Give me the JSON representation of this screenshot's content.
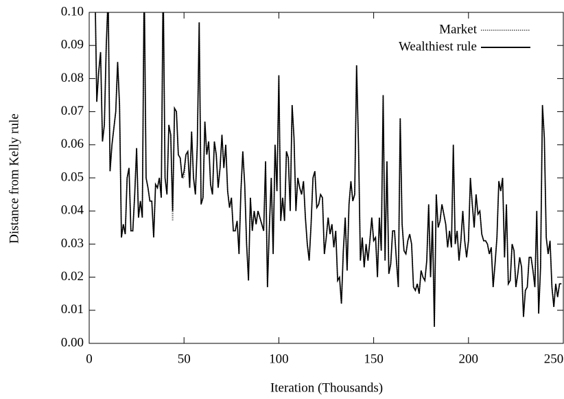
{
  "chart_data": {
    "type": "line",
    "xlabel": "Iteration (Thousands)",
    "ylabel": "Distance from Kelly rule",
    "xlim": [
      0,
      250
    ],
    "xticks": [
      0,
      50,
      100,
      150,
      200,
      250
    ],
    "ylim": [
      0,
      0.1
    ],
    "yticks": [
      {
        "value": 0,
        "label": "0.00"
      },
      0.01,
      0.02,
      0.03,
      0.04,
      0.05,
      0.06,
      0.07,
      0.08,
      0.09,
      {
        "value": 0.1,
        "label": "0.10"
      }
    ],
    "legend": "top-right",
    "x": [
      3,
      4,
      5,
      6,
      7,
      8,
      9,
      10,
      11,
      12,
      13,
      14,
      15,
      16,
      17,
      18,
      19,
      20,
      21,
      22,
      23,
      24,
      25,
      26,
      27,
      28,
      29,
      30,
      31,
      32,
      33,
      34,
      35,
      36,
      37,
      38,
      39,
      40,
      41,
      42,
      43,
      44,
      45,
      46,
      47,
      48,
      49,
      50,
      51,
      52,
      53,
      54,
      55,
      56,
      57,
      58,
      59,
      60,
      61,
      62,
      63,
      64,
      65,
      66,
      67,
      68,
      69,
      70,
      71,
      72,
      73,
      74,
      75,
      76,
      77,
      78,
      79,
      80,
      81,
      82,
      83,
      84,
      85,
      86,
      87,
      88,
      89,
      90,
      91,
      92,
      93,
      94,
      95,
      96,
      97,
      98,
      99,
      100,
      101,
      102,
      103,
      104,
      105,
      106,
      107,
      108,
      109,
      110,
      111,
      112,
      113,
      114,
      115,
      116,
      117,
      118,
      119,
      120,
      121,
      122,
      123,
      124,
      125,
      126,
      127,
      128,
      129,
      130,
      131,
      132,
      133,
      134,
      135,
      136,
      137,
      138,
      139,
      140,
      141,
      142,
      143,
      144,
      145,
      146,
      147,
      148,
      149,
      150,
      151,
      152,
      153,
      154,
      155,
      156,
      157,
      158,
      159,
      160,
      161,
      162,
      163,
      164,
      165,
      166,
      167,
      168,
      169,
      170,
      171,
      172,
      173,
      174,
      175,
      176,
      177,
      178,
      179,
      180,
      181,
      182,
      183,
      184,
      185,
      186,
      187,
      188,
      189,
      190,
      191,
      192,
      193,
      194,
      195,
      196,
      197,
      198,
      199,
      200,
      201,
      202,
      203,
      204,
      205,
      206,
      207,
      208,
      209,
      210,
      211,
      212,
      213,
      214,
      215,
      216,
      217,
      218,
      219,
      220,
      221,
      222,
      223,
      224,
      225,
      226,
      227,
      228,
      229,
      230,
      231,
      232,
      233,
      234,
      235,
      236,
      237,
      238,
      239,
      240,
      241,
      242,
      243,
      244,
      245,
      246,
      247,
      248,
      249
    ],
    "series": [
      {
        "name": "Market",
        "color": "#777777",
        "dash": "dotted",
        "values": [
          0.11,
          0.073,
          0.082,
          0.088,
          0.061,
          0.066,
          0.09,
          0.105,
          0.052,
          0.06,
          0.065,
          0.07,
          0.085,
          0.072,
          0.032,
          0.036,
          0.033,
          0.05,
          0.053,
          0.034,
          0.034,
          0.045,
          0.059,
          0.038,
          0.043,
          0.038,
          0.11,
          0.05,
          0.047,
          0.043,
          0.043,
          0.032,
          0.048,
          0.047,
          0.05,
          0.044,
          0.11,
          0.05,
          0.045,
          0.066,
          0.063,
          0.037,
          0.071,
          0.07,
          0.057,
          0.056,
          0.05,
          0.05,
          0.057,
          0.058,
          0.047,
          0.064,
          0.05,
          0.045,
          0.06,
          0.097,
          0.042,
          0.044,
          0.067,
          0.057,
          0.061,
          0.048,
          0.045,
          0.061,
          0.057,
          0.047,
          0.053,
          0.063,
          0.053,
          0.06,
          0.046,
          0.041,
          0.044,
          0.034,
          0.034,
          0.037,
          0.027,
          0.046,
          0.058,
          0.048,
          0.03,
          0.019,
          0.044,
          0.034,
          0.04,
          0.036,
          0.04,
          0.038,
          0.036,
          0.034,
          0.055,
          0.017,
          0.035,
          0.05,
          0.027,
          0.06,
          0.046,
          0.081,
          0.037,
          0.044,
          0.037,
          0.058,
          0.056,
          0.04,
          0.072,
          0.062,
          0.04,
          0.05,
          0.047,
          0.045,
          0.049,
          0.038,
          0.03,
          0.025,
          0.036,
          0.05,
          0.052,
          0.041,
          0.042,
          0.045,
          0.044,
          0.027,
          0.032,
          0.038,
          0.033,
          0.036,
          0.029,
          0.034,
          0.019,
          0.02,
          0.012,
          0.028,
          0.038,
          0.022,
          0.042,
          0.049,
          0.043,
          0.045,
          0.084,
          0.06,
          0.025,
          0.032,
          0.023,
          0.03,
          0.025,
          0.031,
          0.038,
          0.031,
          0.032,
          0.02,
          0.038,
          0.028,
          0.075,
          0.025,
          0.055,
          0.021,
          0.024,
          0.034,
          0.034,
          0.025,
          0.017,
          0.068,
          0.036,
          0.028,
          0.027,
          0.031,
          0.033,
          0.03,
          0.017,
          0.016,
          0.018,
          0.015,
          0.022,
          0.02,
          0.019,
          0.025,
          0.042,
          0.02,
          0.037,
          0.005,
          0.045,
          0.035,
          0.037,
          0.042,
          0.039,
          0.036,
          0.029,
          0.034,
          0.029,
          0.06,
          0.03,
          0.034,
          0.025,
          0.031,
          0.04,
          0.031,
          0.026,
          0.031,
          0.05,
          0.042,
          0.035,
          0.045,
          0.039,
          0.04,
          0.033,
          0.031,
          0.031,
          0.03,
          0.027,
          0.029,
          0.017,
          0.024,
          0.032,
          0.049,
          0.046,
          0.05,
          0.026,
          0.042,
          0.018,
          0.019,
          0.03,
          0.028,
          0.017,
          0.021,
          0.026,
          0.023,
          0.008,
          0.016,
          0.017,
          0.026,
          0.026,
          0.022,
          0.017,
          0.04,
          0.009,
          0.023,
          0.072,
          0.062,
          0.032,
          0.027,
          0.031,
          0.017,
          0.011,
          0.018,
          0.014,
          0.018,
          0.018
        ]
      },
      {
        "name": "Wealthiest rule",
        "color": "#000000",
        "dash": "solid",
        "values": [
          0.11,
          0.073,
          0.082,
          0.088,
          0.061,
          0.066,
          0.09,
          0.105,
          0.052,
          0.06,
          0.065,
          0.07,
          0.085,
          0.072,
          0.032,
          0.036,
          0.033,
          0.05,
          0.053,
          0.034,
          0.034,
          0.045,
          0.059,
          0.038,
          0.043,
          0.038,
          0.11,
          0.05,
          0.047,
          0.043,
          0.043,
          0.032,
          0.048,
          0.047,
          0.05,
          0.044,
          0.11,
          0.05,
          0.045,
          0.066,
          0.063,
          0.04,
          0.071,
          0.07,
          0.057,
          0.056,
          0.05,
          0.052,
          0.057,
          0.058,
          0.047,
          0.064,
          0.05,
          0.045,
          0.06,
          0.097,
          0.042,
          0.044,
          0.067,
          0.057,
          0.061,
          0.048,
          0.045,
          0.061,
          0.057,
          0.047,
          0.053,
          0.063,
          0.053,
          0.06,
          0.046,
          0.041,
          0.044,
          0.034,
          0.034,
          0.037,
          0.027,
          0.046,
          0.058,
          0.048,
          0.03,
          0.019,
          0.044,
          0.034,
          0.04,
          0.036,
          0.04,
          0.038,
          0.036,
          0.034,
          0.055,
          0.017,
          0.035,
          0.05,
          0.027,
          0.06,
          0.046,
          0.081,
          0.037,
          0.044,
          0.037,
          0.058,
          0.056,
          0.04,
          0.072,
          0.062,
          0.04,
          0.05,
          0.047,
          0.045,
          0.049,
          0.038,
          0.03,
          0.025,
          0.036,
          0.05,
          0.052,
          0.041,
          0.042,
          0.045,
          0.044,
          0.027,
          0.032,
          0.038,
          0.033,
          0.036,
          0.029,
          0.034,
          0.019,
          0.02,
          0.012,
          0.028,
          0.038,
          0.022,
          0.042,
          0.049,
          0.043,
          0.045,
          0.084,
          0.06,
          0.025,
          0.032,
          0.023,
          0.03,
          0.025,
          0.031,
          0.038,
          0.031,
          0.032,
          0.02,
          0.038,
          0.028,
          0.075,
          0.025,
          0.055,
          0.021,
          0.024,
          0.034,
          0.034,
          0.025,
          0.017,
          0.068,
          0.036,
          0.028,
          0.027,
          0.031,
          0.033,
          0.03,
          0.017,
          0.016,
          0.018,
          0.015,
          0.022,
          0.02,
          0.019,
          0.025,
          0.042,
          0.02,
          0.037,
          0.005,
          0.045,
          0.035,
          0.037,
          0.042,
          0.039,
          0.036,
          0.029,
          0.034,
          0.029,
          0.06,
          0.03,
          0.034,
          0.025,
          0.031,
          0.04,
          0.031,
          0.026,
          0.031,
          0.05,
          0.042,
          0.035,
          0.045,
          0.039,
          0.04,
          0.033,
          0.031,
          0.031,
          0.03,
          0.027,
          0.029,
          0.017,
          0.024,
          0.032,
          0.049,
          0.046,
          0.05,
          0.026,
          0.042,
          0.018,
          0.019,
          0.03,
          0.028,
          0.017,
          0.021,
          0.026,
          0.023,
          0.008,
          0.016,
          0.017,
          0.026,
          0.026,
          0.022,
          0.017,
          0.04,
          0.009,
          0.023,
          0.072,
          0.062,
          0.032,
          0.027,
          0.031,
          0.017,
          0.011,
          0.018,
          0.014,
          0.018,
          0.018
        ]
      }
    ]
  }
}
